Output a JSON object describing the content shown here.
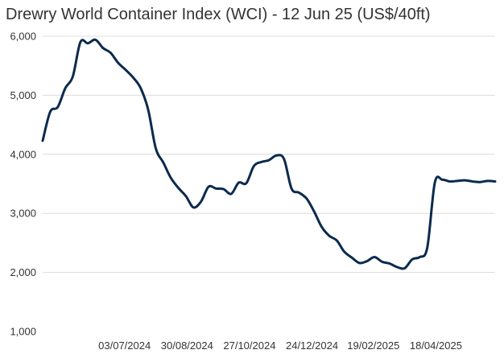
{
  "chart_data": {
    "type": "line",
    "title": "Drewry World Container Index (WCI) - 12 Jun 25 (US$/40ft)",
    "xlabel": "",
    "ylabel": "",
    "ylim": [
      1000,
      6000
    ],
    "yticks": [
      1000,
      2000,
      3000,
      4000,
      5000,
      6000
    ],
    "ytick_labels": [
      "1,000",
      "2,000",
      "3,000",
      "4,000",
      "5,000",
      "6,000"
    ],
    "xtick_labels": [
      "03/07/2024",
      "30/08/2024",
      "27/10/2024",
      "24/12/2024",
      "19/02/2025",
      "18/04/2025"
    ],
    "grid": true,
    "legend": "none",
    "series": [
      {
        "color": "#0b2a4d",
        "x": [
          "18/04/2024",
          "25/04/2024",
          "02/05/2024",
          "09/05/2024",
          "16/05/2024",
          "23/05/2024",
          "30/05/2024",
          "06/06/2024",
          "13/06/2024",
          "20/06/2024",
          "27/06/2024",
          "04/07/2024",
          "11/07/2024",
          "18/07/2024",
          "25/07/2024",
          "01/08/2024",
          "08/08/2024",
          "15/08/2024",
          "22/08/2024",
          "29/08/2024",
          "05/09/2024",
          "12/09/2024",
          "19/09/2024",
          "26/09/2024",
          "03/10/2024",
          "10/10/2024",
          "17/10/2024",
          "24/10/2024",
          "31/10/2024",
          "07/11/2024",
          "14/11/2024",
          "21/11/2024",
          "28/11/2024",
          "05/12/2024",
          "12/12/2024",
          "19/12/2024",
          "26/12/2024",
          "02/01/2025",
          "09/01/2025",
          "16/01/2025",
          "23/01/2025",
          "30/01/2025",
          "06/02/2025",
          "13/02/2025",
          "20/02/2025",
          "27/02/2025",
          "06/03/2025",
          "13/03/2025",
          "20/03/2025",
          "27/03/2025",
          "03/04/2025",
          "10/04/2025",
          "17/04/2025",
          "24/04/2025",
          "01/05/2025",
          "08/05/2025",
          "15/05/2025",
          "22/05/2025",
          "29/05/2025",
          "05/06/2025",
          "12/06/2025"
        ],
        "values": [
          4230,
          4720,
          4800,
          5120,
          5320,
          5900,
          5880,
          5940,
          5800,
          5720,
          5550,
          5430,
          5300,
          5120,
          4750,
          4100,
          3860,
          3600,
          3430,
          3290,
          3100,
          3200,
          3450,
          3420,
          3410,
          3330,
          3520,
          3510,
          3800,
          3870,
          3900,
          3980,
          3920,
          3420,
          3350,
          3250,
          3030,
          2770,
          2620,
          2540,
          2350,
          2250,
          2160,
          2190,
          2260,
          2180,
          2150,
          2090,
          2070,
          2220,
          2260,
          2420,
          3520,
          3570,
          3540,
          3550,
          3560,
          3540,
          3530,
          3550,
          3540
        ]
      }
    ]
  }
}
